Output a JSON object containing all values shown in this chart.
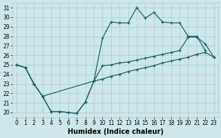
{
  "xlabel": "Humidex (Indice chaleur)",
  "xlim": [
    -0.5,
    23.5
  ],
  "ylim": [
    19.5,
    31.5
  ],
  "xticks": [
    0,
    1,
    2,
    3,
    4,
    5,
    6,
    7,
    8,
    9,
    10,
    11,
    12,
    13,
    14,
    15,
    16,
    17,
    18,
    19,
    20,
    21,
    22,
    23
  ],
  "yticks": [
    20,
    21,
    22,
    23,
    24,
    25,
    26,
    27,
    28,
    29,
    30,
    31
  ],
  "bg_color": "#cce8e8",
  "grid_color": "#aacccc",
  "line_color": "#1a6060",
  "curve1_x": [
    0,
    1,
    2,
    3,
    4,
    5,
    6,
    7,
    8,
    9,
    10,
    11,
    12,
    13,
    14,
    15,
    16,
    17,
    18,
    19,
    20,
    21,
    22
  ],
  "curve1_y": [
    25.0,
    24.7,
    23.0,
    21.7,
    20.1,
    20.1,
    20.0,
    19.9,
    21.1,
    23.3,
    27.8,
    29.5,
    29.4,
    29.4,
    31.0,
    29.9,
    30.5,
    29.5,
    29.4,
    29.4,
    28.0,
    28.0,
    26.5
  ],
  "curve2_x": [
    0,
    1,
    2,
    3,
    9,
    10,
    11,
    12,
    13,
    14,
    15,
    16,
    17,
    18,
    19,
    20,
    21,
    22,
    23
  ],
  "curve2_y": [
    25.0,
    24.7,
    23.0,
    21.7,
    23.3,
    24.9,
    25.0,
    25.2,
    25.3,
    25.5,
    25.7,
    25.9,
    26.1,
    26.3,
    26.5,
    27.9,
    27.9,
    27.2,
    25.8
  ],
  "curve3_x": [
    0,
    1,
    2,
    3,
    4,
    5,
    6,
    7,
    8,
    9,
    10,
    11,
    12,
    13,
    14,
    15,
    16,
    17,
    18,
    19,
    20,
    21,
    22,
    23
  ],
  "curve3_y": [
    25.0,
    24.7,
    23.0,
    21.7,
    20.1,
    20.1,
    20.0,
    19.9,
    21.1,
    23.3,
    23.5,
    23.8,
    24.0,
    24.3,
    24.5,
    24.7,
    24.9,
    25.2,
    25.4,
    25.6,
    25.8,
    26.1,
    26.3,
    25.8
  ],
  "fontsize_label": 7,
  "fontsize_tick": 5.5
}
